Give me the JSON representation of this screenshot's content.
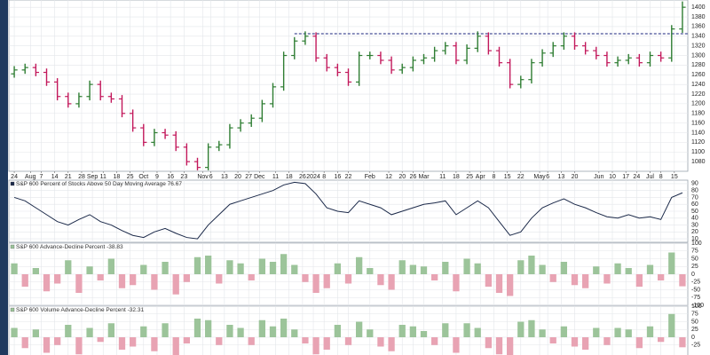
{
  "chart_data": [
    {
      "type": "ohlc",
      "open": [
        1262,
        1270,
        1275,
        1265,
        1245,
        1215,
        1200,
        1215,
        1240,
        1215,
        1210,
        1180,
        1150,
        1120,
        1140,
        1135,
        1110,
        1080,
        1068,
        1110,
        1115,
        1150,
        1160,
        1170,
        1200,
        1235,
        1300,
        1330,
        1340,
        1295,
        1275,
        1265,
        1245,
        1300,
        1300,
        1290,
        1270,
        1275,
        1290,
        1295,
        1310,
        1320,
        1290,
        1315,
        1340,
        1310,
        1285,
        1240,
        1250,
        1285,
        1305,
        1320,
        1340,
        1320,
        1310,
        1300,
        1285,
        1290,
        1295,
        1285,
        1300,
        1295,
        1355
      ],
      "high": [
        1278,
        1283,
        1283,
        1273,
        1253,
        1223,
        1223,
        1248,
        1248,
        1223,
        1218,
        1188,
        1158,
        1148,
        1148,
        1143,
        1118,
        1088,
        1118,
        1123,
        1158,
        1168,
        1178,
        1208,
        1243,
        1308,
        1338,
        1350,
        1348,
        1303,
        1283,
        1273,
        1308,
        1308,
        1308,
        1298,
        1283,
        1298,
        1303,
        1318,
        1328,
        1328,
        1323,
        1350,
        1348,
        1318,
        1293,
        1258,
        1293,
        1313,
        1328,
        1348,
        1348,
        1328,
        1318,
        1308,
        1298,
        1303,
        1303,
        1308,
        1308,
        1363,
        1412
      ],
      "low": [
        1254,
        1262,
        1257,
        1237,
        1207,
        1192,
        1192,
        1207,
        1207,
        1202,
        1172,
        1142,
        1112,
        1112,
        1127,
        1102,
        1072,
        1062,
        1062,
        1102,
        1107,
        1142,
        1152,
        1162,
        1192,
        1227,
        1292,
        1322,
        1287,
        1267,
        1257,
        1237,
        1237,
        1292,
        1282,
        1262,
        1262,
        1267,
        1282,
        1287,
        1302,
        1282,
        1282,
        1307,
        1302,
        1277,
        1232,
        1232,
        1242,
        1277,
        1297,
        1312,
        1312,
        1302,
        1292,
        1277,
        1277,
        1282,
        1277,
        1277,
        1287,
        1287,
        1347
      ],
      "close": [
        1270,
        1275,
        1265,
        1245,
        1215,
        1200,
        1215,
        1240,
        1215,
        1210,
        1180,
        1150,
        1120,
        1140,
        1135,
        1110,
        1080,
        1068,
        1110,
        1115,
        1150,
        1160,
        1170,
        1200,
        1235,
        1300,
        1330,
        1340,
        1295,
        1275,
        1265,
        1245,
        1300,
        1300,
        1290,
        1270,
        1275,
        1290,
        1295,
        1310,
        1320,
        1290,
        1315,
        1340,
        1310,
        1285,
        1240,
        1250,
        1285,
        1305,
        1320,
        1340,
        1320,
        1310,
        1300,
        1285,
        1290,
        1295,
        1285,
        1300,
        1295,
        1355,
        1400
      ],
      "up_color": "#2e7d32",
      "down_color": "#c2185b",
      "hline": {
        "y": 1345,
        "x_start": 26,
        "color": "#1a237e"
      },
      "xlim": [
        -0.5,
        62.5
      ],
      "xticks": [
        {
          "value": 0,
          "label": "24"
        },
        {
          "value": 1.5,
          "label": "Aug"
        },
        {
          "value": 2.5,
          "label": "7"
        },
        {
          "value": 3.75,
          "label": "14"
        },
        {
          "value": 5,
          "label": "21"
        },
        {
          "value": 6.25,
          "label": "28"
        },
        {
          "value": 7.25,
          "label": "Sep"
        },
        {
          "value": 8.25,
          "label": "11"
        },
        {
          "value": 9.5,
          "label": "18"
        },
        {
          "value": 10.75,
          "label": "25"
        },
        {
          "value": 12,
          "label": "Oct"
        },
        {
          "value": 13.25,
          "label": "9"
        },
        {
          "value": 14.5,
          "label": "16"
        },
        {
          "value": 15.75,
          "label": "23"
        },
        {
          "value": 17.5,
          "label": "Nov"
        },
        {
          "value": 18.25,
          "label": "6"
        },
        {
          "value": 19.5,
          "label": "13"
        },
        {
          "value": 20.75,
          "label": "20"
        },
        {
          "value": 21.75,
          "label": "27"
        },
        {
          "value": 22.75,
          "label": "Dec"
        },
        {
          "value": 24.25,
          "label": "11"
        },
        {
          "value": 25.5,
          "label": "18"
        },
        {
          "value": 26.75,
          "label": "26"
        },
        {
          "value": 27.75,
          "label": "2024"
        },
        {
          "value": 28.75,
          "label": "8"
        },
        {
          "value": 30,
          "label": "16"
        },
        {
          "value": 31,
          "label": "22"
        },
        {
          "value": 33,
          "label": "Feb"
        },
        {
          "value": 34.75,
          "label": "12"
        },
        {
          "value": 36,
          "label": "20"
        },
        {
          "value": 37,
          "label": "26"
        },
        {
          "value": 38,
          "label": "Mar"
        },
        {
          "value": 39.75,
          "label": "11"
        },
        {
          "value": 41,
          "label": "18"
        },
        {
          "value": 42.25,
          "label": "25"
        },
        {
          "value": 43.25,
          "label": "Apr"
        },
        {
          "value": 44.5,
          "label": "8"
        },
        {
          "value": 45.75,
          "label": "15"
        },
        {
          "value": 47,
          "label": "22"
        },
        {
          "value": 48.75,
          "label": "May"
        },
        {
          "value": 49.5,
          "label": "6"
        },
        {
          "value": 50.75,
          "label": "13"
        },
        {
          "value": 52,
          "label": "20"
        },
        {
          "value": 54.25,
          "label": "Jun"
        },
        {
          "value": 55.5,
          "label": "10"
        },
        {
          "value": 56.75,
          "label": "17"
        },
        {
          "value": 57.75,
          "label": "24"
        },
        {
          "value": 59,
          "label": "Jul"
        },
        {
          "value": 60,
          "label": "8"
        },
        {
          "value": 61.25,
          "label": "15"
        }
      ],
      "ylim": [
        1060,
        1415
      ],
      "yticks": [
        1080,
        1100,
        1120,
        1140,
        1160,
        1180,
        1200,
        1220,
        1240,
        1260,
        1280,
        1300,
        1320,
        1340,
        1360,
        1380,
        1400
      ],
      "grid": true
    },
    {
      "type": "line",
      "title": "S&P 600 Percent of Stocks Above 50 Day Moving Average 76.67",
      "values": [
        70,
        65,
        55,
        45,
        35,
        30,
        38,
        45,
        35,
        30,
        22,
        15,
        12,
        20,
        25,
        18,
        12,
        10,
        30,
        45,
        60,
        65,
        70,
        75,
        80,
        88,
        92,
        90,
        75,
        55,
        50,
        48,
        65,
        60,
        55,
        45,
        50,
        55,
        60,
        62,
        65,
        45,
        55,
        65,
        55,
        35,
        15,
        20,
        40,
        55,
        62,
        68,
        60,
        55,
        48,
        42,
        40,
        45,
        40,
        42,
        38,
        70,
        76.67
      ],
      "color": "#1c2a4a",
      "xlim": [
        -0.5,
        62.5
      ],
      "ylim": [
        5,
        95
      ],
      "yticks": [
        10,
        20,
        30,
        40,
        50,
        60,
        70,
        80,
        90
      ],
      "grid": true
    },
    {
      "type": "bar",
      "title": "S&P 600 Advance-Decline Percent -38.83",
      "values": [
        35,
        -40,
        20,
        -55,
        -30,
        45,
        -60,
        25,
        -20,
        50,
        -45,
        -35,
        30,
        -50,
        40,
        -65,
        -25,
        55,
        60,
        -30,
        45,
        35,
        -20,
        50,
        40,
        65,
        30,
        -25,
        -60,
        -45,
        35,
        -30,
        55,
        20,
        -35,
        -50,
        45,
        30,
        25,
        -20,
        40,
        -55,
        50,
        35,
        -40,
        -60,
        -70,
        45,
        60,
        30,
        -25,
        40,
        -35,
        -45,
        25,
        -30,
        35,
        20,
        -40,
        30,
        -20,
        70,
        -38.83
      ],
      "pos_color": "#9cc49a",
      "neg_color": "#e8a3b3",
      "xlim": [
        -0.5,
        62.5
      ],
      "ylim": [
        -100,
        100
      ],
      "yticks": [
        100,
        75,
        50,
        25,
        0,
        -25,
        -50,
        -75,
        -100
      ],
      "grid": true
    },
    {
      "type": "bar",
      "title": "S&P 600 Volume Advance-Decline Percent -32.31",
      "values": [
        30,
        -35,
        25,
        -50,
        -25,
        40,
        -55,
        30,
        -15,
        45,
        -40,
        -30,
        35,
        -45,
        45,
        -60,
        -20,
        60,
        55,
        -25,
        40,
        30,
        -25,
        55,
        35,
        60,
        25,
        -20,
        -55,
        -40,
        40,
        -25,
        50,
        25,
        -30,
        -45,
        40,
        35,
        20,
        -25,
        45,
        -50,
        45,
        30,
        -35,
        -55,
        -65,
        50,
        55,
        25,
        -20,
        35,
        -30,
        -40,
        30,
        -25,
        30,
        25,
        -35,
        35,
        -15,
        75,
        -32.31
      ],
      "pos_color": "#9cc49a",
      "neg_color": "#e8a3b3",
      "xlim": [
        -0.5,
        62.5
      ],
      "ylim": [
        -100,
        100
      ],
      "yticks": [
        100,
        75,
        50,
        25,
        0,
        -25
      ],
      "grid": true
    }
  ]
}
